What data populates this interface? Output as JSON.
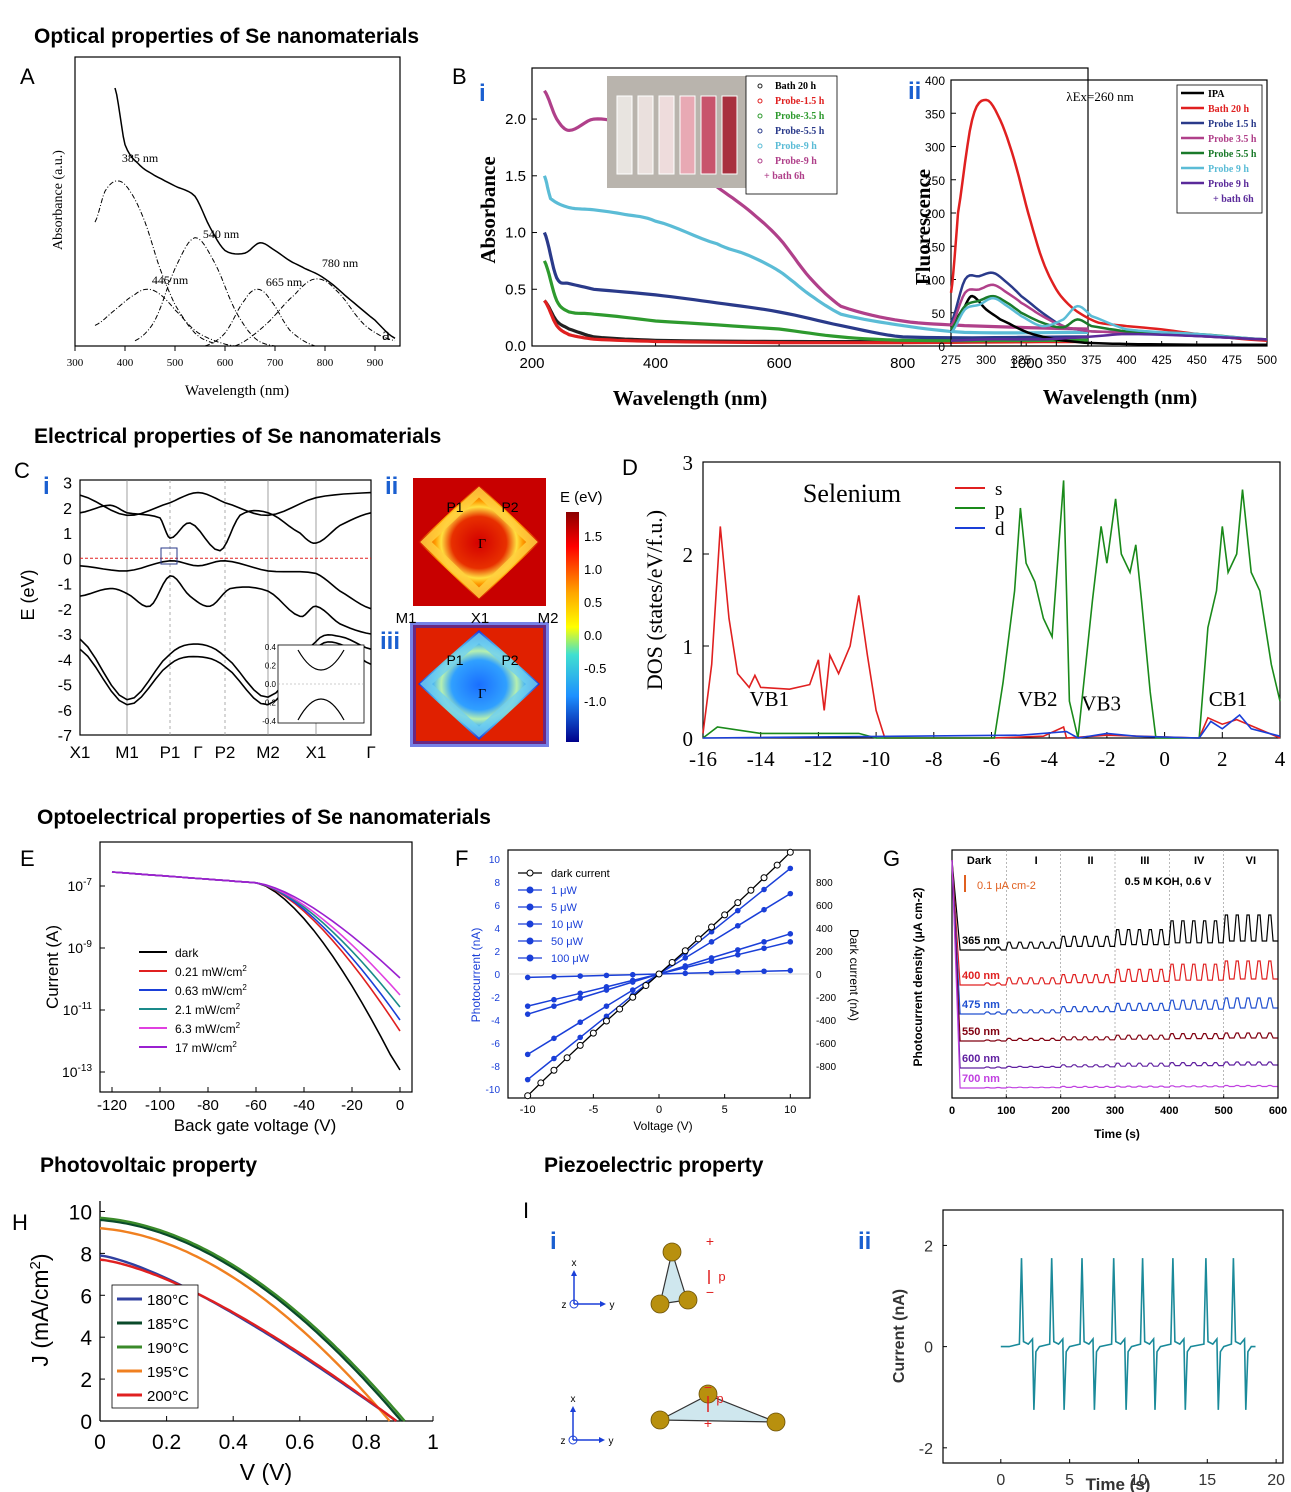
{
  "sections": {
    "optical": "Optical properties of Se nanomaterials",
    "electrical": "Electrical properties of Se nanomaterials",
    "optoelectrical": "Optoelectrical properties of Se nanomaterials",
    "photovoltaic": "Photovoltaic property",
    "piezoelectric": "Piezoelectric property"
  },
  "panel_labels": {
    "A": "A",
    "B": "B",
    "C": "C",
    "D": "D",
    "E": "E",
    "F": "F",
    "G": "G",
    "H": "H",
    "I": "I"
  },
  "sub_labels": {
    "Bi": "i",
    "Bii": "ii",
    "Ci": "i",
    "Cii": "ii",
    "Ciii": "iii",
    "Ii": "i",
    "Iii": "ii"
  },
  "colors": {
    "accent": "#1a5fd0",
    "red": "#e02020",
    "green": "#1a8a1a",
    "blue": "#1a3fd8"
  },
  "chart_data": [
    {
      "id": "A",
      "type": "line",
      "xlabel": "Wavelength (nm)",
      "ylabel": "Absorbance (a.u.)",
      "xlim": [
        300,
        950
      ],
      "xticks": [
        300,
        400,
        500,
        600,
        700,
        800,
        900
      ],
      "annotations": [
        "385 nm",
        "540 nm",
        "445 nm",
        "665 nm",
        "780 nm",
        "a"
      ],
      "series": [
        {
          "style": "solid",
          "x": [
            380,
            400,
            430,
            460,
            500,
            540,
            570,
            600,
            640,
            670,
            700,
            730,
            760,
            800,
            850,
            900,
            940
          ],
          "y": [
            1.0,
            0.78,
            0.7,
            0.66,
            0.62,
            0.58,
            0.46,
            0.37,
            0.36,
            0.4,
            0.37,
            0.33,
            0.3,
            0.26,
            0.18,
            0.1,
            0.03
          ]
        },
        {
          "style": "dashdot",
          "x": [
            340,
            360,
            385,
            410,
            440,
            470,
            500,
            540,
            580
          ],
          "y": [
            0.48,
            0.6,
            0.64,
            0.6,
            0.48,
            0.3,
            0.16,
            0.05,
            0.01
          ]
        },
        {
          "style": "dashdot",
          "x": [
            340,
            380,
            420,
            445,
            470,
            500,
            540,
            580,
            620
          ],
          "y": [
            0.08,
            0.14,
            0.2,
            0.22,
            0.2,
            0.14,
            0.06,
            0.02,
            0.0
          ]
        },
        {
          "style": "dashdot",
          "x": [
            420,
            460,
            500,
            540,
            580,
            620,
            660,
            700
          ],
          "y": [
            0.02,
            0.1,
            0.3,
            0.42,
            0.32,
            0.14,
            0.03,
            0.0
          ]
        },
        {
          "style": "dashdot",
          "x": [
            560,
            600,
            640,
            665,
            690,
            730,
            780
          ],
          "y": [
            0.0,
            0.05,
            0.18,
            0.22,
            0.18,
            0.06,
            0.0
          ]
        },
        {
          "style": "dashdot",
          "x": [
            620,
            680,
            740,
            780,
            820,
            880,
            940
          ],
          "y": [
            0.0,
            0.08,
            0.2,
            0.26,
            0.22,
            0.08,
            0.02
          ]
        }
      ]
    },
    {
      "id": "Bi",
      "type": "line",
      "xlabel": "Wavelength (nm)",
      "ylabel": "Absorbance",
      "xlim": [
        200,
        1100
      ],
      "ylim": [
        0,
        2.5
      ],
      "xticks": [
        200,
        400,
        600,
        800,
        1000
      ],
      "yticks": [
        0.0,
        0.5,
        1.0,
        1.5,
        2.0
      ],
      "legend": [
        "Bath 20 h",
        "Probe-1.5 h",
        "Probe-3.5 h",
        "Probe-5.5 h",
        "Probe-9 h",
        "Probe-9 h",
        "+ bath 6h"
      ],
      "series": [
        {
          "name": "Bath 20 h",
          "color": "#222222",
          "x": [
            220,
            240,
            260,
            300,
            400,
            600,
            800,
            1100
          ],
          "y": [
            0.4,
            0.22,
            0.15,
            0.08,
            0.05,
            0.04,
            0.04,
            0.05
          ]
        },
        {
          "name": "Probe-1.5 h",
          "color": "#e02020",
          "x": [
            220,
            240,
            260,
            300,
            400,
            600,
            800,
            1100
          ],
          "y": [
            0.4,
            0.18,
            0.1,
            0.06,
            0.04,
            0.03,
            0.03,
            0.04
          ]
        },
        {
          "name": "Probe-3.5 h",
          "color": "#2e9a2e",
          "x": [
            220,
            240,
            260,
            300,
            400,
            600,
            700,
            800,
            1100
          ],
          "y": [
            0.75,
            0.4,
            0.3,
            0.28,
            0.22,
            0.15,
            0.08,
            0.05,
            0.05
          ]
        },
        {
          "name": "Probe-5.5 h",
          "color": "#2a3a8a",
          "x": [
            220,
            240,
            260,
            300,
            400,
            500,
            600,
            700,
            800,
            1100
          ],
          "y": [
            1.0,
            0.6,
            0.55,
            0.5,
            0.45,
            0.38,
            0.3,
            0.18,
            0.08,
            0.08
          ]
        },
        {
          "name": "Probe-9 h",
          "color": "#5bbcd6",
          "x": [
            220,
            230,
            260,
            300,
            350,
            400,
            500,
            550,
            600,
            650,
            700,
            800,
            900,
            1100
          ],
          "y": [
            1.5,
            1.3,
            1.22,
            1.2,
            1.16,
            1.1,
            0.9,
            0.8,
            0.66,
            0.45,
            0.28,
            0.18,
            0.12,
            0.12
          ]
        },
        {
          "name": "Probe-9 h + bath 6h",
          "color": "#b0408a",
          "x": [
            220,
            240,
            260,
            300,
            350,
            400,
            450,
            500,
            550,
            600,
            650,
            700,
            800,
            900,
            1100
          ],
          "y": [
            2.25,
            2.0,
            1.9,
            2.0,
            1.95,
            1.8,
            1.6,
            1.4,
            1.2,
            0.95,
            0.6,
            0.35,
            0.22,
            0.18,
            0.15
          ]
        }
      ]
    },
    {
      "id": "Bii",
      "type": "line",
      "xlabel": "Wavelength (nm)",
      "ylabel": "Fluorescence",
      "xlim": [
        275,
        500
      ],
      "ylim": [
        0,
        400
      ],
      "xticks": [
        275,
        300,
        325,
        350,
        375,
        400,
        425,
        450,
        475,
        500
      ],
      "yticks": [
        0,
        50,
        100,
        150,
        200,
        250,
        300,
        350,
        400
      ],
      "annotation": "λEx=260 nm",
      "legend": [
        "IPA",
        "Bath 20 h",
        "Probe 1.5 h",
        "Probe 3.5 h",
        "Probe 5.5 h",
        "Probe 9 h",
        "Probe 9 h",
        "+ bath 6h"
      ],
      "series": [
        {
          "name": "IPA",
          "color": "#000000",
          "x": [
            275,
            285,
            290,
            300,
            310,
            330,
            350,
            370,
            400,
            450,
            500
          ],
          "y": [
            30,
            60,
            75,
            55,
            40,
            20,
            10,
            5,
            3,
            2,
            2
          ]
        },
        {
          "name": "Bath 20 h",
          "color": "#e02020",
          "x": [
            275,
            280,
            290,
            300,
            310,
            320,
            330,
            340,
            350,
            360,
            370,
            380,
            400,
            425,
            450,
            475,
            500
          ],
          "y": [
            80,
            200,
            340,
            370,
            340,
            280,
            200,
            130,
            85,
            60,
            45,
            35,
            30,
            25,
            18,
            12,
            8
          ]
        },
        {
          "name": "Probe 1.5 h",
          "color": "#2a3a8a",
          "x": [
            275,
            285,
            295,
            305,
            315,
            325,
            340,
            355,
            365,
            375,
            400,
            450,
            500
          ],
          "y": [
            35,
            100,
            105,
            110,
            95,
            75,
            50,
            30,
            25,
            22,
            20,
            15,
            10
          ]
        },
        {
          "name": "Probe 3.5 h",
          "color": "#b0408a",
          "x": [
            275,
            285,
            295,
            305,
            315,
            325,
            340,
            355,
            365,
            375,
            400,
            450,
            500
          ],
          "y": [
            30,
            80,
            85,
            92,
            80,
            65,
            45,
            30,
            25,
            22,
            20,
            15,
            10
          ]
        },
        {
          "name": "Probe 5.5 h",
          "color": "#1a7a2a",
          "x": [
            275,
            285,
            295,
            305,
            315,
            325,
            340,
            355,
            365,
            375,
            400,
            450,
            500
          ],
          "y": [
            25,
            60,
            68,
            75,
            65,
            50,
            35,
            28,
            40,
            30,
            22,
            18,
            10
          ]
        },
        {
          "name": "Probe 9 h",
          "color": "#5bbcd6",
          "x": [
            275,
            285,
            295,
            305,
            315,
            325,
            340,
            355,
            365,
            375,
            400,
            450,
            500
          ],
          "y": [
            20,
            55,
            62,
            72,
            60,
            45,
            30,
            40,
            60,
            45,
            25,
            18,
            10
          ]
        },
        {
          "name": "Probe 9 h + bath 6h",
          "color": "#5a2a9a",
          "x": [
            275,
            300,
            340,
            360,
            380,
            400,
            450,
            500
          ],
          "y": [
            8,
            10,
            10,
            12,
            15,
            18,
            15,
            10
          ]
        }
      ]
    },
    {
      "id": "Ci",
      "type": "line",
      "ylabel": "E (eV)",
      "ylim": [
        -7,
        3
      ],
      "yticks": [
        3,
        2,
        1,
        0,
        -1,
        -2,
        -3,
        -4,
        -5,
        -6,
        -7
      ],
      "kpoints": [
        "X1",
        "M1",
        "P1",
        "Γ",
        "P2",
        "M2",
        "X1",
        "Γ"
      ],
      "inset_yticks": [
        "0.4",
        "0.2",
        "0.0",
        "-0.2",
        "-0.4"
      ]
    },
    {
      "id": "Cii_iii",
      "type": "heatmap",
      "colorbar_label": "E (eV)",
      "colorbar_ticks": [
        "1.5",
        "1.0",
        "0.5",
        "0.0",
        "-0.5",
        "-1.0"
      ],
      "points_top": [
        "P1",
        "P2",
        "Γ"
      ],
      "axis_labels": [
        "M1",
        "X1",
        "M2"
      ],
      "points_bottom": [
        "P1",
        "P2",
        "Γ"
      ]
    },
    {
      "id": "D",
      "type": "line",
      "xlabel": "",
      "ylabel": "DOS (states/eV/f.u.)",
      "title": "Selenium",
      "xlim": [
        -16,
        4
      ],
      "ylim": [
        0,
        3
      ],
      "xticks": [
        -16,
        -14,
        -12,
        -10,
        -8,
        -6,
        -4,
        -2,
        0,
        2,
        4
      ],
      "yticks": [
        0,
        1,
        2,
        3
      ],
      "legend": [
        "s",
        "p",
        "d"
      ],
      "band_labels": [
        "VB1",
        "VB2",
        "VB3",
        "CB1"
      ]
    },
    {
      "id": "E",
      "type": "line",
      "xlabel": "Back gate voltage (V)",
      "ylabel": "Current (A)",
      "xlim": [
        -125,
        5
      ],
      "xticks": [
        -120,
        -100,
        -80,
        -60,
        -40,
        -20,
        0
      ],
      "yticks": [
        "10-7",
        "10-9",
        "10-11",
        "10-13"
      ],
      "legend": [
        "dark",
        "0.21 mW/cm2",
        "0.63 mW/cm2",
        "2.1 mW/cm2",
        "6.3 mW/cm2",
        "17 mW/cm2"
      ]
    },
    {
      "id": "F",
      "type": "line",
      "xlabel": "Voltage (V)",
      "ylabel": "Photocurrent (nA)",
      "ylabel2": "Dark current (nA)",
      "xlim": [
        -10,
        10
      ],
      "ylim": [
        -10,
        10
      ],
      "xticks": [
        -10,
        -5,
        0,
        5,
        10
      ],
      "yticks": [
        -10,
        -8,
        -6,
        -4,
        -2,
        0,
        2,
        4,
        6,
        8,
        10
      ],
      "y2ticks": [
        -800,
        -600,
        -400,
        -200,
        0,
        200,
        400,
        600,
        800
      ],
      "legend": [
        "dark current",
        "1 μW",
        "5 μW",
        "10 μW",
        "50 μW",
        "100 μW"
      ]
    },
    {
      "id": "G",
      "type": "line",
      "xlabel": "Time (s)",
      "ylabel": "Photocurrent density (μA cm-2)",
      "xlim": [
        0,
        600
      ],
      "xticks": [
        0,
        100,
        200,
        300,
        400,
        500,
        600
      ],
      "region_labels": [
        "Dark",
        "I",
        "II",
        "III",
        "IV",
        "VI"
      ],
      "annotation": "0.5 M KOH, 0.6 V",
      "scale_label": "0.1 μA cm-2",
      "series_labels": [
        "365 nm",
        "400 nm",
        "475 nm",
        "550 nm",
        "600 nm",
        "700 nm"
      ]
    },
    {
      "id": "H",
      "type": "line",
      "xlabel": "V (V)",
      "ylabel": "J (mA/cm2)",
      "xlim": [
        0,
        1
      ],
      "ylim": [
        0,
        10.5
      ],
      "xticks": [
        0,
        0.2,
        0.4,
        0.6,
        0.8,
        1
      ],
      "yticks": [
        0,
        2,
        4,
        6,
        8,
        10
      ],
      "legend": [
        "180°C",
        "185°C",
        "190°C",
        "195°C",
        "200°C"
      ]
    },
    {
      "id": "Iii",
      "type": "line",
      "xlabel": "Time (s)",
      "ylabel": "Current (nA)",
      "xlim": [
        -3,
        20
      ],
      "ylim": [
        -2,
        2.7
      ],
      "xticks": [
        0,
        5,
        10,
        15,
        20
      ],
      "yticks": [
        2,
        0,
        -2
      ]
    }
  ],
  "piezo_i": {
    "axis_x": "x",
    "axis_y": "y",
    "axis_z": "z",
    "p_label": "p",
    "plus": "+",
    "minus": "−"
  }
}
